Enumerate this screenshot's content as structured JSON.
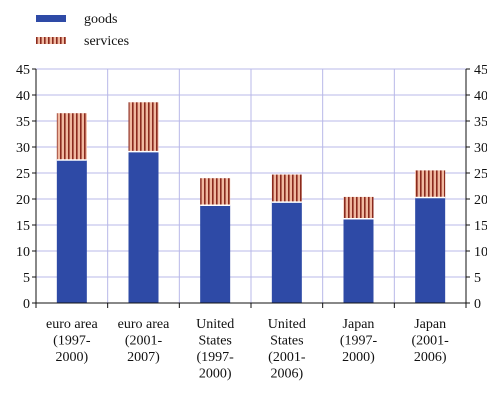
{
  "chart_data": {
    "type": "bar",
    "stacked": true,
    "categories": [
      [
        "euro area",
        "(1997-",
        "2000)"
      ],
      [
        "euro area",
        "(2001-",
        "2007)"
      ],
      [
        "United",
        "States",
        "(1997-",
        "2000)"
      ],
      [
        "United",
        "States",
        "(2001-",
        "2006)"
      ],
      [
        "Japan",
        "(1997-",
        "2000)"
      ],
      [
        "Japan",
        "(2001-",
        "2006)"
      ]
    ],
    "series": [
      {
        "name": "goods",
        "values": [
          27.5,
          29.1,
          18.8,
          19.4,
          16.2,
          20.3
        ]
      },
      {
        "name": "services",
        "values": [
          9.0,
          9.5,
          5.2,
          5.3,
          4.2,
          5.2
        ]
      }
    ],
    "ylim": [
      0,
      45
    ],
    "yticks": [
      0,
      5,
      10,
      15,
      20,
      25,
      30,
      35,
      40,
      45
    ],
    "grid": true,
    "legend_position": "top-left",
    "colors": {
      "goods": "#2e4aa6",
      "services_fill": "#f0b8a0",
      "services_stripe": "#8b2a1e",
      "grid": "#b8b8e8",
      "axis": "#111111"
    }
  }
}
